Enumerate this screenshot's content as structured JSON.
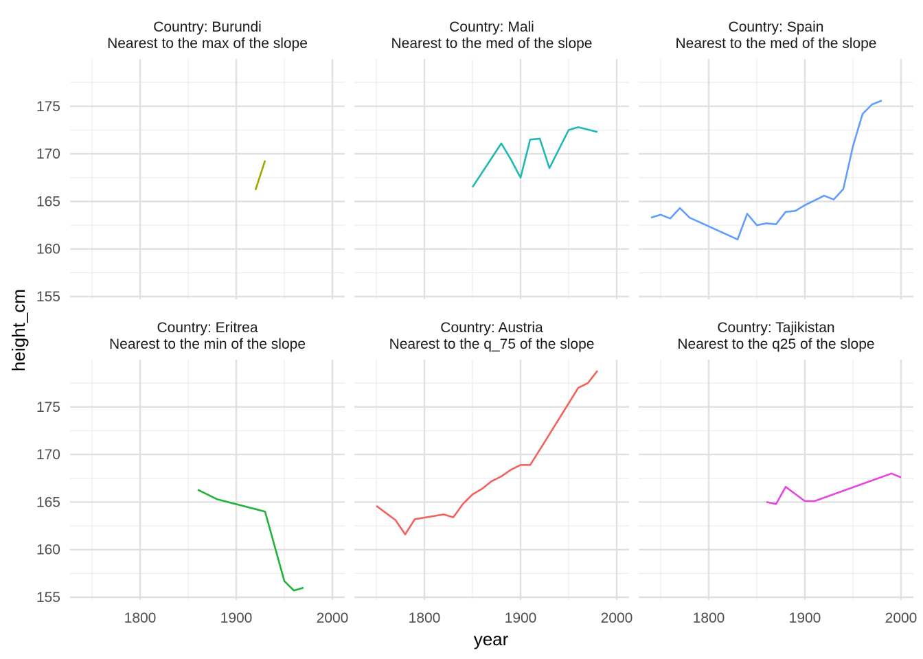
{
  "chart_data": {
    "type": "line",
    "xlabel": "year",
    "ylabel": "height_cm",
    "xlim": [
      1750,
      1980
    ],
    "ylim": [
      155,
      178
    ],
    "x_ticks": [
      1800,
      1900,
      2000
    ],
    "y_ticks": [
      155,
      160,
      165,
      170,
      175
    ],
    "grid": true,
    "legend": "none",
    "panels": [
      {
        "title": "Country: Burundi",
        "subtitle": "Nearest to the max of the slope",
        "color": "#A3A500",
        "x": [
          1920,
          1930
        ],
        "y": [
          166.2,
          169.3
        ]
      },
      {
        "title": "Country: Mali",
        "subtitle": "Nearest to the med of the slope",
        "color": "#1FB8B4",
        "x": [
          1850,
          1880,
          1890,
          1900,
          1910,
          1920,
          1930,
          1950,
          1960,
          1980
        ],
        "y": [
          166.5,
          171.1,
          169.4,
          167.5,
          171.5,
          171.6,
          168.5,
          172.5,
          172.8,
          172.3
        ]
      },
      {
        "title": "Country: Spain",
        "subtitle": "Nearest to the med of the slope",
        "color": "#619CFF",
        "x": [
          1740,
          1750,
          1760,
          1770,
          1780,
          1830,
          1840,
          1850,
          1860,
          1870,
          1880,
          1890,
          1900,
          1920,
          1930,
          1940,
          1950,
          1960,
          1970,
          1980
        ],
        "y": [
          163.3,
          163.6,
          163.2,
          164.3,
          163.3,
          161.0,
          163.7,
          162.5,
          162.7,
          162.6,
          163.9,
          164.0,
          164.6,
          165.6,
          165.2,
          166.3,
          170.8,
          174.2,
          175.2,
          175.6
        ]
      },
      {
        "title": "Country: Eritrea",
        "subtitle": "Nearest to the min of the slope",
        "color": "#21B23A",
        "x": [
          1860,
          1880,
          1930,
          1950,
          1960,
          1970
        ],
        "y": [
          166.3,
          165.3,
          164.0,
          156.7,
          155.7,
          156.0
        ]
      },
      {
        "title": "Country: Austria",
        "subtitle": "Nearest to the q_75 of the slope",
        "color": "#F2615B",
        "x": [
          1750,
          1770,
          1780,
          1790,
          1820,
          1830,
          1840,
          1850,
          1860,
          1870,
          1880,
          1890,
          1900,
          1910,
          1920,
          1960,
          1970,
          1980
        ],
        "y": [
          164.6,
          163.1,
          161.6,
          163.2,
          163.7,
          163.4,
          164.8,
          165.8,
          166.4,
          167.2,
          167.7,
          168.4,
          168.9,
          168.9,
          170.5,
          177.0,
          177.5,
          178.8
        ]
      },
      {
        "title": "Country: Tajikistan",
        "subtitle": "Nearest to the q25 of the slope",
        "color": "#E645DF",
        "x": [
          1860,
          1870,
          1880,
          1900,
          1910,
          1990,
          2000
        ],
        "y": [
          165.0,
          164.8,
          166.6,
          165.1,
          165.1,
          168.0,
          167.6
        ]
      }
    ]
  }
}
